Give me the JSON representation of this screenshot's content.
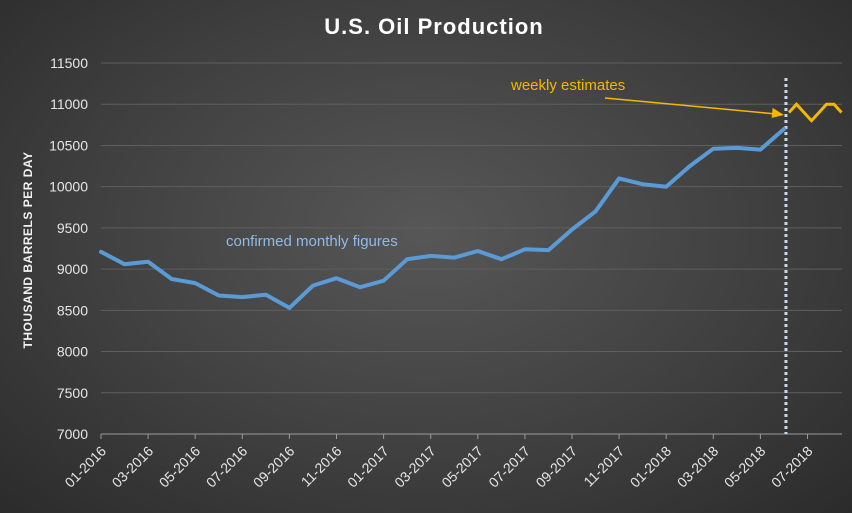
{
  "chart_data": {
    "type": "line",
    "title": "U.S. Oil Production",
    "ylabel": "THOUSAND BARRELS PER DAY",
    "xlabel": "",
    "ylim": [
      7000,
      11500
    ],
    "yticks": [
      7000,
      7500,
      8000,
      8500,
      9000,
      9500,
      10000,
      10500,
      11000,
      11500
    ],
    "xtick_labels": [
      "01-2016",
      "03-2016",
      "05-2016",
      "07-2016",
      "09-2016",
      "11-2016",
      "01-2017",
      "03-2017",
      "05-2017",
      "07-2017",
      "09-2017",
      "11-2017",
      "01-2018",
      "03-2018",
      "05-2018",
      "07-2018"
    ],
    "grid": true,
    "series": [
      {
        "name": "confirmed monthly figures",
        "color": "#5b9bd5",
        "x": [
          "01-2016",
          "02-2016",
          "03-2016",
          "04-2016",
          "05-2016",
          "06-2016",
          "07-2016",
          "08-2016",
          "09-2016",
          "10-2016",
          "11-2016",
          "12-2016",
          "01-2017",
          "02-2017",
          "03-2017",
          "04-2017",
          "05-2017",
          "06-2017",
          "07-2017",
          "08-2017",
          "09-2017",
          "10-2017",
          "11-2017",
          "12-2017",
          "01-2018",
          "02-2018",
          "03-2018",
          "04-2018",
          "05-2018",
          "06-2018"
        ],
        "values": [
          9210,
          9060,
          9090,
          8880,
          8830,
          8680,
          8660,
          8690,
          8530,
          8800,
          8890,
          8780,
          8860,
          9120,
          9160,
          9140,
          9220,
          9120,
          9240,
          9230,
          9480,
          9700,
          10100,
          10030,
          10000,
          10250,
          10460,
          10470,
          10450,
          10700
        ]
      },
      {
        "name": "weekly estimates",
        "color": "#f5b800",
        "x": [
          "06-2018",
          "06-2018 w2",
          "06-2018 w3",
          "07-2018",
          "07-2018 w2",
          "07-2018 w3",
          "07-2018 w4",
          "08-2018"
        ],
        "values": [
          10900,
          11000,
          10900,
          10800,
          10900,
          11000,
          11000,
          10900
        ]
      }
    ],
    "annotations": {
      "confirmed": "confirmed monthly figures",
      "weekly": "weekly estimates"
    },
    "colors": {
      "confirmed_label": "#8fbbe8",
      "weekly_label": "#f5b800",
      "divider": "#c9d8ea"
    }
  }
}
